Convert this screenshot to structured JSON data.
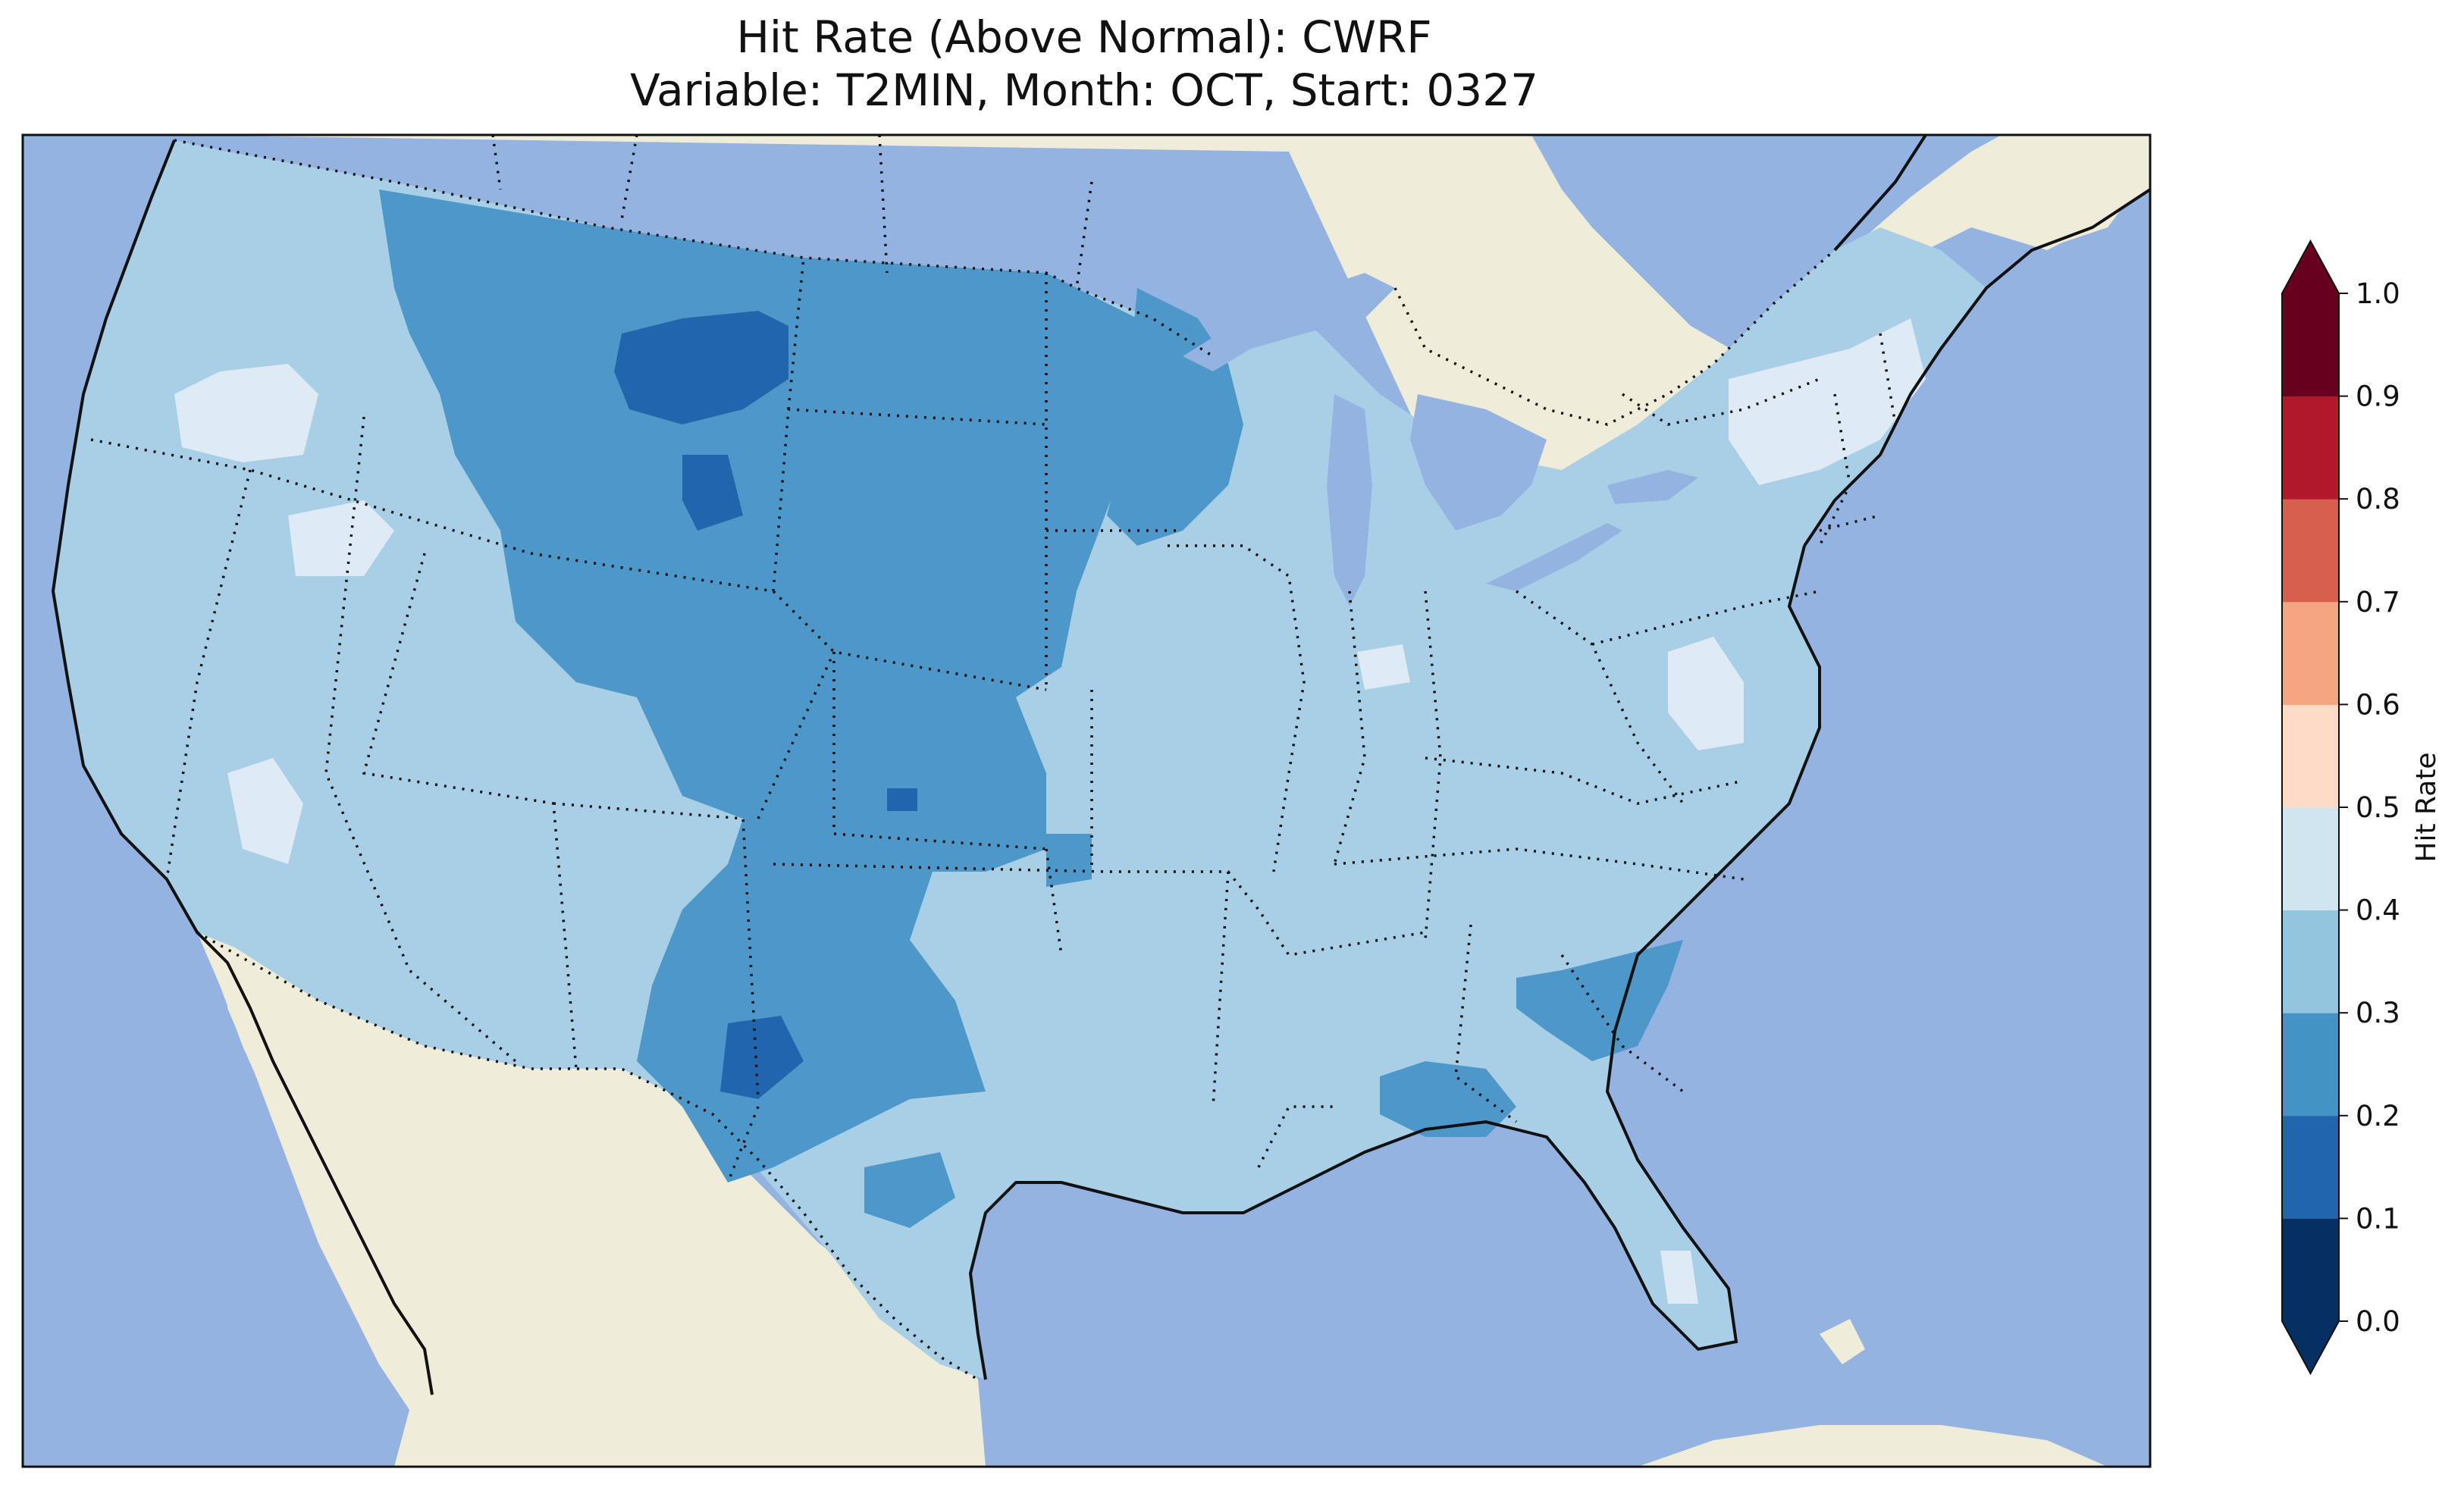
{
  "title": {
    "line1": "Hit Rate (Above Normal): CWRF",
    "line2": "Variable: T2MIN, Month: OCT, Start: 0327"
  },
  "colors": {
    "ocean": "#95b3e0",
    "land": "#efedda",
    "lakes": "#95b3e0"
  },
  "colorbar": {
    "label": "Hit Rate",
    "ticks": [
      "0.0",
      "0.1",
      "0.2",
      "0.3",
      "0.4",
      "0.5",
      "0.6",
      "0.7",
      "0.8",
      "0.9",
      "1.0"
    ],
    "colors": [
      "#053061",
      "#2166ac",
      "#4393c3",
      "#92c5de",
      "#d1e5f0",
      "#fddbc7",
      "#f4a582",
      "#d6604d",
      "#b2182b",
      "#67001f"
    ],
    "under_color": "#053061",
    "over_color": "#67001f"
  },
  "map_fill_colors": {
    "0.1-0.2": "#2166ac",
    "0.2-0.3": "#4d98c9",
    "0.3-0.4": "#a8cfe5",
    "0.4-0.5": "#deebf4"
  }
}
